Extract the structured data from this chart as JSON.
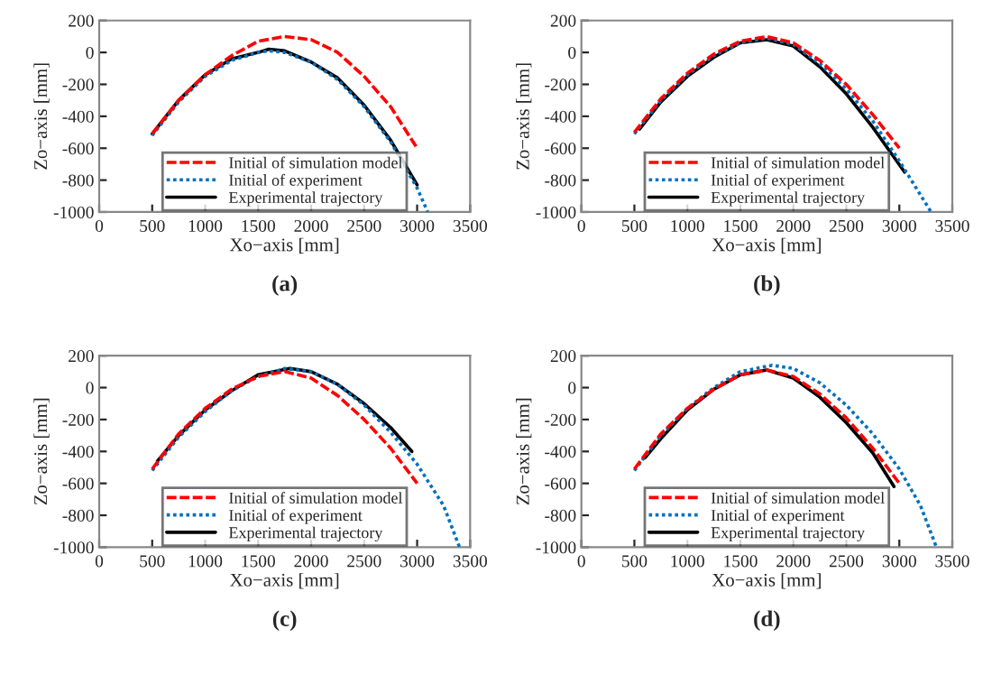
{
  "chart_data": [
    {
      "type": "line",
      "xlabel": "Xo−axis [mm]",
      "ylabel": "Zo−axis [mm]",
      "xlim": [
        0,
        3500
      ],
      "ylim": [
        -1000,
        200
      ],
      "xticks": [
        0,
        500,
        1000,
        1500,
        2000,
        2500,
        3000,
        3500
      ],
      "yticks": [
        -1000,
        -800,
        -600,
        -400,
        -200,
        0,
        200
      ],
      "grid": false,
      "legend": "bottom",
      "annotations": [
        "(a)"
      ],
      "series": [
        {
          "name": "Initial of simulation model",
          "color": "#ff0000",
          "line_style": "dashed",
          "x": [
            500,
            750,
            1000,
            1250,
            1500,
            1750,
            2000,
            2250,
            2500,
            2750,
            3000
          ],
          "values": [
            -510,
            -300,
            -140,
            -20,
            70,
            100,
            80,
            0,
            -150,
            -340,
            -600
          ]
        },
        {
          "name": "Initial of experiment",
          "color": "#0070c0",
          "line_style": "dotted",
          "x": [
            500,
            750,
            1000,
            1250,
            1500,
            1600,
            1750,
            2000,
            2250,
            2500,
            2750,
            3000,
            3100
          ],
          "values": [
            -520,
            -310,
            -150,
            -50,
            0,
            10,
            0,
            -60,
            -170,
            -340,
            -560,
            -850,
            -1000
          ]
        },
        {
          "name": "Experimental trajectory",
          "color": "#000000",
          "line_style": "solid",
          "x": [
            500,
            750,
            1000,
            1250,
            1500,
            1600,
            1750,
            2000,
            2250,
            2500,
            2750,
            3000
          ],
          "values": [
            -510,
            -300,
            -140,
            -40,
            0,
            20,
            10,
            -60,
            -160,
            -330,
            -550,
            -830
          ]
        }
      ]
    },
    {
      "type": "line",
      "xlabel": "Xo−axis [mm]",
      "ylabel": "Zo−axis [mm]",
      "xlim": [
        0,
        3500
      ],
      "ylim": [
        -1000,
        200
      ],
      "xticks": [
        0,
        500,
        1000,
        1500,
        2000,
        2500,
        3000,
        3500
      ],
      "yticks": [
        -1000,
        -800,
        -600,
        -400,
        -200,
        0,
        200
      ],
      "grid": false,
      "legend": "bottom",
      "annotations": [
        "(b)"
      ],
      "series": [
        {
          "name": "Initial of simulation model",
          "color": "#ff0000",
          "line_style": "dashed",
          "x": [
            500,
            750,
            1000,
            1250,
            1500,
            1750,
            2000,
            2250,
            2500,
            2750,
            3000
          ],
          "values": [
            -500,
            -290,
            -130,
            -10,
            70,
            100,
            60,
            -50,
            -200,
            -390,
            -600
          ]
        },
        {
          "name": "Initial of experiment",
          "color": "#0070c0",
          "line_style": "dotted",
          "x": [
            500,
            750,
            1000,
            1250,
            1500,
            1750,
            2000,
            2250,
            2500,
            2750,
            3000,
            3300
          ],
          "values": [
            -510,
            -300,
            -140,
            -20,
            60,
            90,
            50,
            -70,
            -230,
            -430,
            -680,
            -1000
          ]
        },
        {
          "name": "Experimental trajectory",
          "color": "#000000",
          "line_style": "solid",
          "x": [
            550,
            750,
            1000,
            1250,
            1500,
            1750,
            2000,
            2250,
            2500,
            2750,
            3050
          ],
          "values": [
            -480,
            -310,
            -150,
            -30,
            60,
            80,
            40,
            -90,
            -260,
            -470,
            -750
          ]
        }
      ]
    },
    {
      "type": "line",
      "xlabel": "Xo−axis [mm]",
      "ylabel": "Zo−axis [mm]",
      "xlim": [
        0,
        3500
      ],
      "ylim": [
        -1000,
        200
      ],
      "xticks": [
        0,
        500,
        1000,
        1500,
        2000,
        2500,
        3000,
        3500
      ],
      "yticks": [
        -1000,
        -800,
        -600,
        -400,
        -200,
        0,
        200
      ],
      "grid": false,
      "legend": "bottom",
      "annotations": [
        "(c)"
      ],
      "series": [
        {
          "name": "Initial of simulation model",
          "color": "#ff0000",
          "line_style": "dashed",
          "x": [
            500,
            750,
            1000,
            1250,
            1500,
            1750,
            2000,
            2250,
            2500,
            2750,
            3000
          ],
          "values": [
            -510,
            -290,
            -130,
            -10,
            70,
            100,
            60,
            -50,
            -200,
            -380,
            -600
          ]
        },
        {
          "name": "Initial of experiment",
          "color": "#0070c0",
          "line_style": "dotted",
          "x": [
            500,
            750,
            1000,
            1250,
            1500,
            1750,
            2000,
            2250,
            2500,
            2750,
            3000,
            3250,
            3400
          ],
          "values": [
            -520,
            -310,
            -150,
            -20,
            70,
            120,
            100,
            20,
            -110,
            -280,
            -480,
            -740,
            -1000
          ]
        },
        {
          "name": "Experimental trajectory",
          "color": "#000000",
          "line_style": "solid",
          "x": [
            550,
            750,
            1000,
            1250,
            1500,
            1800,
            2000,
            2250,
            2500,
            2750,
            2950
          ],
          "values": [
            -460,
            -300,
            -140,
            -20,
            80,
            120,
            100,
            20,
            -100,
            -250,
            -400
          ]
        }
      ]
    },
    {
      "type": "line",
      "xlabel": "Xo−axis [mm]",
      "ylabel": "Zo−axis [mm]",
      "xlim": [
        0,
        3500
      ],
      "ylim": [
        -1000,
        200
      ],
      "xticks": [
        0,
        500,
        1000,
        1500,
        2000,
        2500,
        3000,
        3500
      ],
      "yticks": [
        -1000,
        -800,
        -600,
        -400,
        -200,
        0,
        200
      ],
      "grid": false,
      "legend": "bottom",
      "annotations": [
        "(d)"
      ],
      "series": [
        {
          "name": "Initial of simulation model",
          "color": "#ff0000",
          "line_style": "dashed",
          "x": [
            500,
            750,
            1000,
            1250,
            1500,
            1750,
            2000,
            2250,
            2500,
            2750,
            3000
          ],
          "values": [
            -510,
            -290,
            -130,
            -10,
            80,
            110,
            70,
            -40,
            -190,
            -380,
            -600
          ]
        },
        {
          "name": "Initial of experiment",
          "color": "#0070c0",
          "line_style": "dotted",
          "x": [
            500,
            750,
            1000,
            1250,
            1500,
            1800,
            2000,
            2250,
            2500,
            2750,
            3000,
            3200,
            3350
          ],
          "values": [
            -520,
            -300,
            -130,
            0,
            100,
            140,
            120,
            30,
            -110,
            -290,
            -510,
            -740,
            -1000
          ]
        },
        {
          "name": "Experimental trajectory",
          "color": "#000000",
          "line_style": "solid",
          "x": [
            600,
            750,
            1000,
            1250,
            1500,
            1750,
            2000,
            2250,
            2500,
            2750,
            2950
          ],
          "values": [
            -440,
            -320,
            -140,
            -10,
            80,
            110,
            60,
            -60,
            -220,
            -410,
            -620
          ]
        }
      ]
    }
  ]
}
